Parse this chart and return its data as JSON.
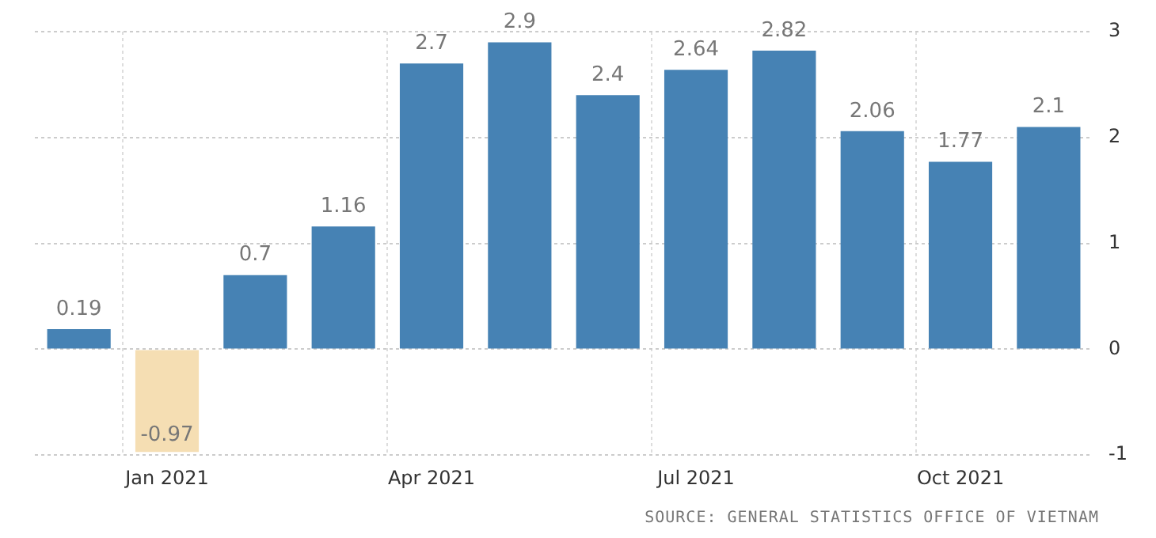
{
  "chart_data": {
    "type": "bar",
    "categories": [
      null,
      "Jan 2021",
      null,
      null,
      "Apr 2021",
      null,
      null,
      "Jul 2021",
      null,
      null,
      "Oct 2021",
      null
    ],
    "values": [
      0.19,
      -0.97,
      0.7,
      1.16,
      2.7,
      2.9,
      2.4,
      2.64,
      2.82,
      2.06,
      1.77,
      2.1
    ],
    "colors": [
      "#4682b4",
      "#f5deb3",
      "#4682b4",
      "#4682b4",
      "#4682b4",
      "#4682b4",
      "#4682b4",
      "#4682b4",
      "#4682b4",
      "#4682b4",
      "#4682b4",
      "#4682b4"
    ],
    "ylim": [
      -1,
      3
    ],
    "yticks": [
      -1,
      0,
      1,
      2,
      3
    ],
    "grid": true,
    "data_labels": true,
    "legend": false,
    "annotations": [
      "SOURCE: GENERAL STATISTICS OFFICE OF VIETNAM"
    ]
  }
}
